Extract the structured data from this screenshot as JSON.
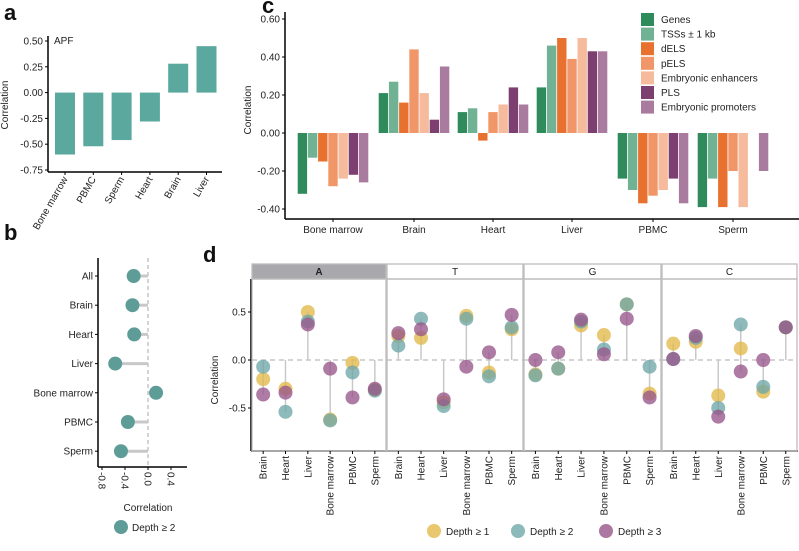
{
  "panel_letters": [
    "a",
    "b",
    "c",
    "d"
  ],
  "chart_data": [
    {
      "panel": "a",
      "type": "bar",
      "annotation": "APF",
      "ylabel": "Correlation",
      "categories": [
        "Bone marrow",
        "PBMC",
        "Sperm",
        "Heart",
        "Brain",
        "Liver"
      ],
      "values": [
        -0.6,
        -0.52,
        -0.46,
        -0.28,
        0.28,
        0.45
      ],
      "ylim": [
        -0.75,
        0.5
      ],
      "yticks": [
        "0.50",
        "0.25",
        "0.00",
        "-0.25",
        "-0.50",
        "-0.75"
      ],
      "color": "#5aa89e"
    },
    {
      "panel": "b",
      "type": "lollipop",
      "xlabel": "Correlation",
      "categories": [
        "All",
        "Brain",
        "Heart",
        "Liver",
        "Bone marrow",
        "PBMC",
        "Sperm"
      ],
      "values": [
        -0.25,
        -0.27,
        -0.24,
        -0.57,
        0.14,
        -0.35,
        -0.47
      ],
      "xlim": [
        -0.8,
        0.6
      ],
      "xticks": [
        "-0.8",
        "-0.4",
        "0.0",
        "0.4"
      ],
      "legend": "Depth ≥ 2",
      "color": "#5e9c98"
    },
    {
      "panel": "c",
      "type": "bar",
      "ylabel": "Correlation",
      "categories": [
        "Bone marrow",
        "Brain",
        "Heart",
        "Liver",
        "PBMC",
        "Sperm"
      ],
      "ylim": [
        -0.4,
        0.6
      ],
      "yticks": [
        "0.60",
        "0.40",
        "0.20",
        "0.00",
        "-0.20",
        "-0.40"
      ],
      "legend_position": "top-right",
      "series": [
        {
          "name": "Genes",
          "color": "#2f8a5c",
          "values": [
            -0.32,
            0.21,
            0.11,
            0.24,
            -0.24,
            -0.39
          ]
        },
        {
          "name": "TSSs ± 1 kb",
          "color": "#72b294",
          "values": [
            -0.13,
            0.27,
            0.13,
            0.46,
            -0.3,
            -0.24
          ]
        },
        {
          "name": "dELS",
          "color": "#e8712f",
          "values": [
            -0.15,
            0.16,
            -0.04,
            0.5,
            -0.37,
            -0.39
          ]
        },
        {
          "name": "pELS",
          "color": "#f19669",
          "values": [
            -0.28,
            0.44,
            0.11,
            0.39,
            -0.33,
            -0.2
          ]
        },
        {
          "name": "Embryonic enhancers",
          "color": "#f6bb9c",
          "values": [
            -0.24,
            0.21,
            0.15,
            0.5,
            -0.3,
            -0.39
          ]
        },
        {
          "name": "PLS",
          "color": "#7d3f6f",
          "values": [
            -0.22,
            0.07,
            0.24,
            0.43,
            -0.24,
            null
          ]
        },
        {
          "name": "Embryonic promoters",
          "color": "#a87b9f",
          "values": [
            -0.26,
            0.35,
            0.15,
            0.43,
            -0.37,
            -0.2
          ]
        }
      ]
    },
    {
      "panel": "d",
      "type": "scatter",
      "ylabel": "Correlation",
      "yticks": [
        "0.5",
        "0.0",
        "-0.5"
      ],
      "ylim": [
        -0.9,
        0.9
      ],
      "categories": [
        "Brain",
        "Heart",
        "Liver",
        "Bone marrow",
        "PBMC",
        "Sperm"
      ],
      "facets": [
        {
          "name": "A",
          "highlighted": true,
          "depth1": [
            -0.2,
            -0.3,
            0.5,
            -0.62,
            -0.03,
            -0.31
          ],
          "depth2": [
            -0.07,
            -0.54,
            0.4,
            -0.63,
            -0.13,
            -0.32
          ],
          "depth3": [
            -0.36,
            -0.34,
            0.37,
            -0.09,
            -0.39,
            -0.3
          ]
        },
        {
          "name": "T",
          "highlighted": false,
          "depth1": [
            0.25,
            0.23,
            -0.44,
            0.46,
            -0.13,
            0.32
          ],
          "depth2": [
            0.15,
            0.43,
            -0.48,
            0.43,
            -0.17,
            0.34
          ],
          "depth3": [
            0.28,
            0.32,
            -0.41,
            -0.07,
            0.08,
            0.47
          ]
        },
        {
          "name": "G",
          "highlighted": false,
          "depth1": [
            -0.15,
            -0.09,
            0.36,
            0.26,
            0.58,
            -0.35
          ],
          "depth2": [
            -0.16,
            -0.09,
            0.4,
            0.11,
            0.58,
            -0.07
          ],
          "depth3": [
            0.0,
            0.08,
            0.42,
            0.06,
            0.43,
            -0.39
          ]
        },
        {
          "name": "C",
          "highlighted": false,
          "depth1": [
            0.17,
            0.19,
            -0.37,
            0.12,
            -0.33,
            0.34
          ],
          "depth2": [
            0.01,
            0.23,
            -0.5,
            0.37,
            -0.28,
            0.34
          ],
          "depth3": [
            0.01,
            0.25,
            -0.59,
            -0.12,
            0.0,
            0.34
          ]
        }
      ],
      "legend": [
        {
          "name": "Depth ≥ 1",
          "color": "#e3b94a"
        },
        {
          "name": "Depth ≥ 2",
          "color": "#6fa7a8"
        },
        {
          "name": "Depth ≥ 3",
          "color": "#97568a"
        }
      ]
    }
  ]
}
